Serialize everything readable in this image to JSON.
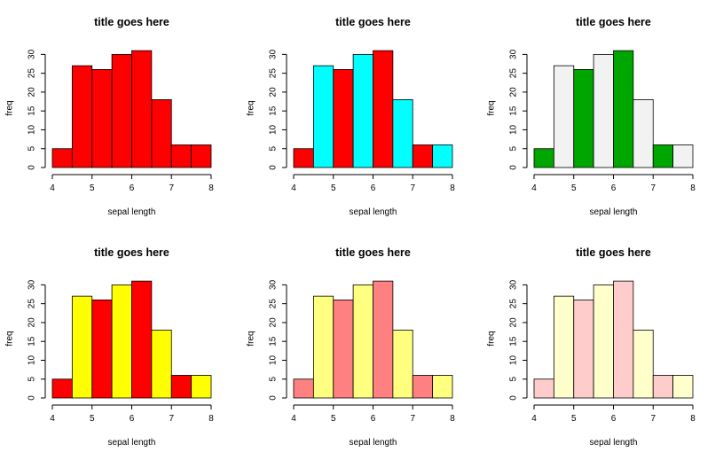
{
  "chart_data": [
    {
      "type": "bar",
      "title": "title goes here",
      "xlabel": "sepal length",
      "ylabel": "freq",
      "bins": [
        [
          4,
          4.5
        ],
        [
          4.5,
          5
        ],
        [
          5,
          5.5
        ],
        [
          5.5,
          6
        ],
        [
          6,
          6.5
        ],
        [
          6.5,
          7
        ],
        [
          7,
          7.5
        ],
        [
          7.5,
          8
        ]
      ],
      "values": [
        5,
        27,
        26,
        30,
        31,
        18,
        6,
        6
      ],
      "colors": [
        "#ff0000"
      ],
      "xlim": [
        4,
        8
      ],
      "ylim": [
        0,
        30
      ],
      "xticks": [
        "4",
        "5",
        "6",
        "7",
        "8"
      ],
      "yticks": [
        "0",
        "5",
        "10",
        "15",
        "20",
        "25",
        "30"
      ]
    },
    {
      "type": "bar",
      "title": "title goes here",
      "xlabel": "sepal length",
      "ylabel": "freq",
      "bins": [
        [
          4,
          4.5
        ],
        [
          4.5,
          5
        ],
        [
          5,
          5.5
        ],
        [
          5.5,
          6
        ],
        [
          6,
          6.5
        ],
        [
          6.5,
          7
        ],
        [
          7,
          7.5
        ],
        [
          7.5,
          8
        ]
      ],
      "values": [
        5,
        27,
        26,
        30,
        31,
        18,
        6,
        6
      ],
      "colors": [
        "#ff0000",
        "#00ffff"
      ],
      "xlim": [
        4,
        8
      ],
      "ylim": [
        0,
        30
      ],
      "xticks": [
        "4",
        "5",
        "6",
        "7",
        "8"
      ],
      "yticks": [
        "0",
        "5",
        "10",
        "15",
        "20",
        "25",
        "30"
      ]
    },
    {
      "type": "bar",
      "title": "title goes here",
      "xlabel": "sepal length",
      "ylabel": "freq",
      "bins": [
        [
          4,
          4.5
        ],
        [
          4.5,
          5
        ],
        [
          5,
          5.5
        ],
        [
          5.5,
          6
        ],
        [
          6,
          6.5
        ],
        [
          6.5,
          7
        ],
        [
          7,
          7.5
        ],
        [
          7.5,
          8
        ]
      ],
      "values": [
        5,
        27,
        26,
        30,
        31,
        18,
        6,
        6
      ],
      "colors": [
        "#00a600",
        "#f2f2f2"
      ],
      "xlim": [
        4,
        8
      ],
      "ylim": [
        0,
        30
      ],
      "xticks": [
        "4",
        "5",
        "6",
        "7",
        "8"
      ],
      "yticks": [
        "0",
        "5",
        "10",
        "15",
        "20",
        "25",
        "30"
      ]
    },
    {
      "type": "bar",
      "title": "title goes here",
      "xlabel": "sepal length",
      "ylabel": "freq",
      "bins": [
        [
          4,
          4.5
        ],
        [
          4.5,
          5
        ],
        [
          5,
          5.5
        ],
        [
          5.5,
          6
        ],
        [
          6,
          6.5
        ],
        [
          6.5,
          7
        ],
        [
          7,
          7.5
        ],
        [
          7.5,
          8
        ]
      ],
      "values": [
        5,
        27,
        26,
        30,
        31,
        18,
        6,
        6
      ],
      "colors": [
        "#ff0000",
        "#ffff00"
      ],
      "xlim": [
        4,
        8
      ],
      "ylim": [
        0,
        30
      ],
      "xticks": [
        "4",
        "5",
        "6",
        "7",
        "8"
      ],
      "yticks": [
        "0",
        "5",
        "10",
        "15",
        "20",
        "25",
        "30"
      ]
    },
    {
      "type": "bar",
      "title": "title goes here",
      "xlabel": "sepal length",
      "ylabel": "freq",
      "bins": [
        [
          4,
          4.5
        ],
        [
          4.5,
          5
        ],
        [
          5,
          5.5
        ],
        [
          5.5,
          6
        ],
        [
          6,
          6.5
        ],
        [
          6.5,
          7
        ],
        [
          7,
          7.5
        ],
        [
          7.5,
          8
        ]
      ],
      "values": [
        5,
        27,
        26,
        30,
        31,
        18,
        6,
        6
      ],
      "colors": [
        "#ff8080",
        "#ffff80"
      ],
      "xlim": [
        4,
        8
      ],
      "ylim": [
        0,
        30
      ],
      "xticks": [
        "4",
        "5",
        "6",
        "7",
        "8"
      ],
      "yticks": [
        "0",
        "5",
        "10",
        "15",
        "20",
        "25",
        "30"
      ]
    },
    {
      "type": "bar",
      "title": "title goes here",
      "xlabel": "sepal length",
      "ylabel": "freq",
      "bins": [
        [
          4,
          4.5
        ],
        [
          4.5,
          5
        ],
        [
          5,
          5.5
        ],
        [
          5.5,
          6
        ],
        [
          6,
          6.5
        ],
        [
          6.5,
          7
        ],
        [
          7,
          7.5
        ],
        [
          7.5,
          8
        ]
      ],
      "values": [
        5,
        27,
        26,
        30,
        31,
        18,
        6,
        6
      ],
      "colors": [
        "#ffcccc",
        "#ffffcc"
      ],
      "xlim": [
        4,
        8
      ],
      "ylim": [
        0,
        30
      ],
      "xticks": [
        "4",
        "5",
        "6",
        "7",
        "8"
      ],
      "yticks": [
        "0",
        "5",
        "10",
        "15",
        "20",
        "25",
        "30"
      ]
    }
  ]
}
